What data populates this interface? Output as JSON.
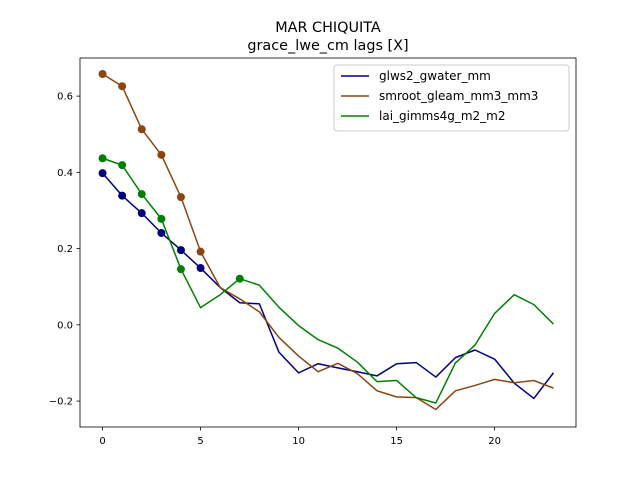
{
  "chart_data": {
    "type": "line",
    "title": "MAR CHIQUITA",
    "subtitle": "grace_lwe_cm lags [X]",
    "xlabel": "",
    "ylabel": "",
    "xlim": [
      -1.15,
      24.15
    ],
    "ylim": [
      -0.268,
      0.7
    ],
    "x_ticks": [
      0,
      5,
      10,
      15,
      20
    ],
    "y_ticks": [
      -0.2,
      0.0,
      0.2,
      0.4,
      0.6
    ],
    "x_tick_labels": [
      "0",
      "5",
      "10",
      "15",
      "20"
    ],
    "y_tick_labels": [
      "−0.2",
      "0.0",
      "0.2",
      "0.4",
      "0.6"
    ],
    "legend_position": "top-right",
    "grid": false,
    "x": [
      0,
      1,
      2,
      3,
      4,
      5,
      6,
      7,
      8,
      9,
      10,
      11,
      12,
      13,
      14,
      15,
      16,
      17,
      18,
      19,
      20,
      21,
      22,
      23
    ],
    "series": [
      {
        "name": "glws2_gwater_mm",
        "color": "#00007f",
        "values": [
          0.398,
          0.339,
          0.293,
          0.241,
          0.196,
          0.149,
          0.098,
          0.058,
          0.055,
          -0.072,
          -0.126,
          -0.102,
          -0.113,
          -0.123,
          -0.134,
          -0.102,
          -0.099,
          -0.137,
          -0.086,
          -0.066,
          -0.09,
          -0.153,
          -0.193,
          -0.126
        ],
        "markers": [
          0,
          1,
          2,
          3,
          4,
          5
        ]
      },
      {
        "name": "smroot_gleam_mm3_mm3",
        "color": "#8b4513",
        "values": [
          0.658,
          0.626,
          0.513,
          0.446,
          0.335,
          0.192,
          0.098,
          0.068,
          0.034,
          -0.033,
          -0.082,
          -0.123,
          -0.101,
          -0.128,
          -0.173,
          -0.189,
          -0.191,
          -0.222,
          -0.173,
          -0.159,
          -0.143,
          -0.152,
          -0.146,
          -0.166
        ],
        "markers": [
          0,
          1,
          2,
          3,
          4,
          5
        ]
      },
      {
        "name": "lai_gimms4g_m2_m2",
        "color": "#008000",
        "values": [
          0.437,
          0.419,
          0.343,
          0.278,
          0.146,
          0.045,
          0.079,
          0.121,
          0.104,
          0.046,
          -0.002,
          -0.039,
          -0.061,
          -0.098,
          -0.149,
          -0.146,
          -0.191,
          -0.205,
          -0.1,
          -0.053,
          0.03,
          0.079,
          0.053,
          0.002
        ],
        "markers": [
          0,
          1,
          2,
          3,
          4,
          7
        ]
      }
    ]
  }
}
